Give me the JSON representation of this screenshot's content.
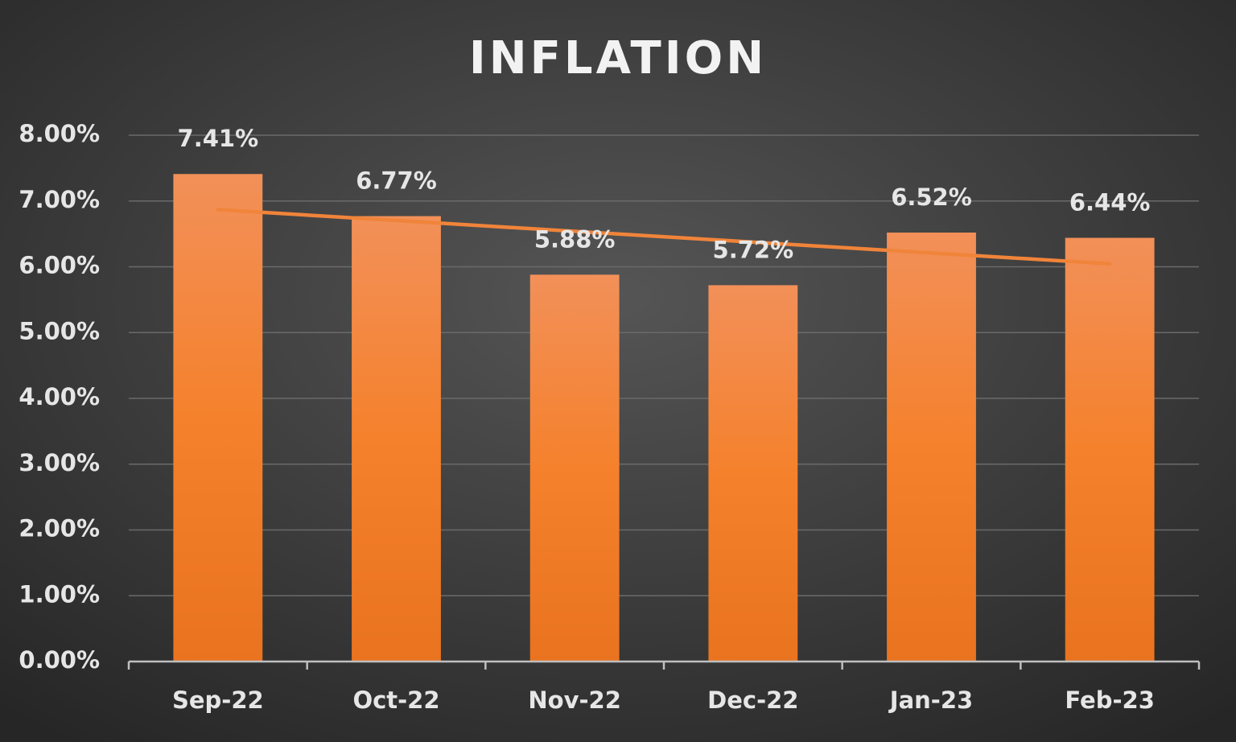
{
  "chart_data": {
    "type": "bar",
    "title": "INFLATION",
    "categories": [
      "Sep-22",
      "Oct-22",
      "Nov-22",
      "Dec-22",
      "Jan-23",
      "Feb-23"
    ],
    "values": [
      7.41,
      6.77,
      5.88,
      5.72,
      6.52,
      6.44
    ],
    "value_labels": [
      "7.41%",
      "6.77%",
      "5.88%",
      "5.72%",
      "6.52%",
      "6.44%"
    ],
    "color": "#f07f2c",
    "trendline": "linear",
    "trendline_color": "#f0843a",
    "ylim": [
      0,
      8
    ],
    "yticks": [
      {
        "value": 0,
        "label": "0.00%"
      },
      {
        "value": 1,
        "label": "1.00%"
      },
      {
        "value": 2,
        "label": "2.00%"
      },
      {
        "value": 3,
        "label": "3.00%"
      },
      {
        "value": 4,
        "label": "4.00%"
      },
      {
        "value": 5,
        "label": "5.00%"
      },
      {
        "value": 6,
        "label": "6.00%"
      },
      {
        "value": 7,
        "label": "7.00%"
      },
      {
        "value": 8,
        "label": "8.00%"
      }
    ],
    "grid": true
  }
}
